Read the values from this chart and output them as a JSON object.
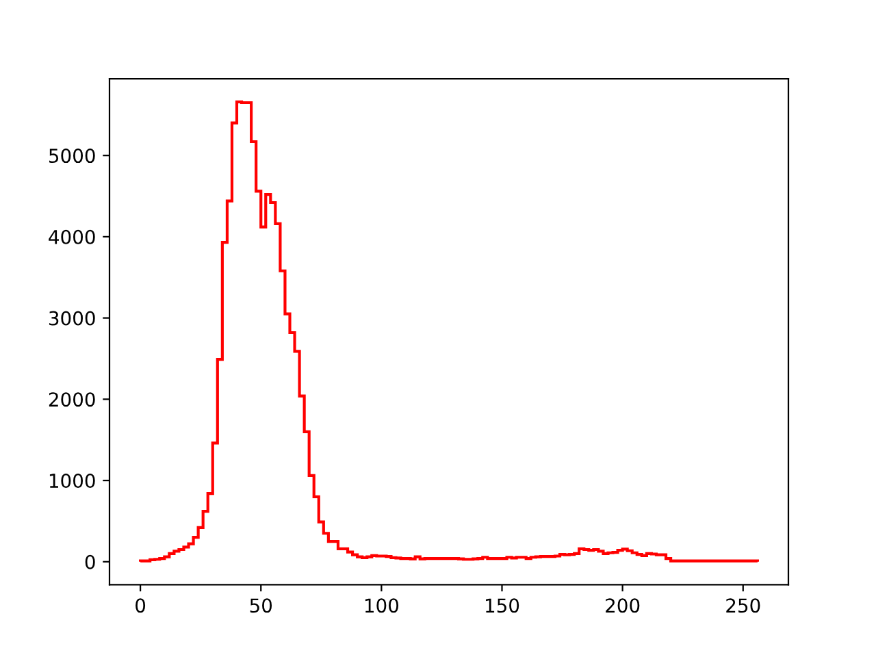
{
  "chart_data": {
    "type": "histogram",
    "color": "#ff0000",
    "bins": [
      0,
      2,
      4,
      6,
      8,
      10,
      12,
      14,
      16,
      18,
      20,
      22,
      24,
      26,
      28,
      30,
      32,
      34,
      36,
      38,
      40,
      42,
      44,
      46,
      48,
      50,
      52,
      54,
      56,
      58,
      60,
      62,
      64,
      66,
      68,
      70,
      72,
      74,
      76,
      78,
      80,
      82,
      84,
      86,
      88,
      90,
      92,
      94,
      96,
      98,
      100,
      102,
      104,
      106,
      108,
      110,
      112,
      114,
      116,
      118,
      120,
      122,
      124,
      126,
      128,
      130,
      132,
      134,
      136,
      138,
      140,
      142,
      144,
      146,
      148,
      150,
      152,
      154,
      156,
      158,
      160,
      162,
      164,
      166,
      168,
      170,
      172,
      174,
      176,
      178,
      180,
      182,
      184,
      186,
      188,
      190,
      192,
      194,
      196,
      198,
      200,
      202,
      204,
      206,
      208,
      210,
      212,
      214,
      216,
      218,
      220,
      222,
      224,
      226,
      228,
      230,
      232,
      234,
      236,
      238,
      240,
      242,
      244,
      246,
      248,
      250,
      252,
      254,
      256
    ],
    "values": [
      10,
      10,
      25,
      30,
      40,
      60,
      100,
      130,
      150,
      180,
      220,
      300,
      420,
      620,
      840,
      1460,
      2490,
      3930,
      4440,
      5400,
      5660,
      5650,
      5650,
      5170,
      4560,
      4120,
      4520,
      4420,
      4160,
      3580,
      3050,
      2820,
      2590,
      2040,
      1600,
      1060,
      800,
      490,
      350,
      250,
      250,
      160,
      160,
      120,
      85,
      60,
      50,
      60,
      75,
      70,
      70,
      65,
      50,
      45,
      40,
      40,
      35,
      60,
      35,
      40,
      40,
      40,
      40,
      40,
      40,
      40,
      35,
      30,
      30,
      35,
      40,
      55,
      40,
      40,
      40,
      40,
      55,
      45,
      55,
      55,
      40,
      55,
      60,
      65,
      65,
      65,
      70,
      90,
      85,
      90,
      100,
      160,
      150,
      140,
      150,
      130,
      100,
      110,
      115,
      140,
      155,
      135,
      110,
      90,
      75,
      100,
      95,
      85,
      85,
      40,
      10,
      10,
      10,
      10,
      10,
      10,
      10,
      10,
      10,
      10,
      10,
      10,
      10,
      10,
      10,
      10,
      10,
      10
    ],
    "xlim": [
      -12.8,
      268.8
    ],
    "ylim": [
      -283,
      5943
    ],
    "xticks": [
      0,
      50,
      100,
      150,
      200,
      250
    ],
    "yticks": [
      0,
      1000,
      2000,
      3000,
      4000,
      5000
    ]
  }
}
